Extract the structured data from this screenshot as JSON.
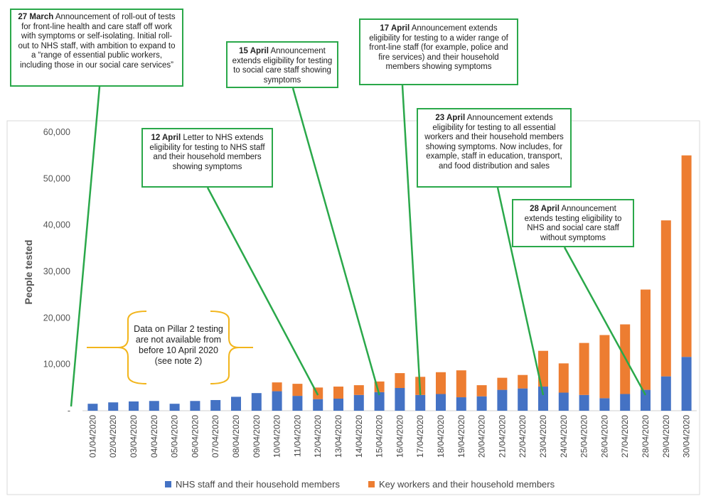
{
  "chart_data": {
    "type": "bar",
    "stacked": true,
    "ylabel": "People tested",
    "ylim": [
      0,
      60000
    ],
    "yticks": [
      0,
      10000,
      20000,
      30000,
      40000,
      50000,
      60000
    ],
    "ytick_labels": [
      "-",
      "10,000",
      "20,000",
      "30,000",
      "40,000",
      "50,000",
      "60,000"
    ],
    "categories": [
      "01/04/2020",
      "02/04/2020",
      "03/04/2020",
      "04/04/2020",
      "05/04/2020",
      "06/04/2020",
      "07/04/2020",
      "08/04/2020",
      "09/04/2020",
      "10/04/2020",
      "11/04/2020",
      "12/04/2020",
      "13/04/2020",
      "14/04/2020",
      "15/04/2020",
      "16/04/2020",
      "17/04/2020",
      "18/04/2020",
      "19/04/2020",
      "20/04/2020",
      "21/04/2020",
      "22/04/2020",
      "23/04/2020",
      "24/04/2020",
      "25/04/2020",
      "26/04/2020",
      "27/04/2020",
      "28/04/2020",
      "29/04/2020",
      "30/04/2020"
    ],
    "series": [
      {
        "name": "NHS staff and their household members",
        "color": "#4472c4",
        "values": [
          1500,
          1800,
          2000,
          2100,
          1500,
          2100,
          2300,
          3000,
          3800,
          4200,
          3200,
          2500,
          2600,
          3400,
          4000,
          4900,
          3400,
          3600,
          2900,
          3100,
          4500,
          4800,
          5200,
          3900,
          3400,
          2700,
          3600,
          4500,
          7400,
          11600
        ]
      },
      {
        "name": "Key workers and their household members",
        "color": "#ed7d31",
        "values": [
          0,
          0,
          0,
          0,
          0,
          0,
          0,
          0,
          0,
          1900,
          2600,
          2500,
          2600,
          2100,
          2300,
          3200,
          3900,
          4700,
          5800,
          2400,
          2600,
          2900,
          7700,
          6300,
          11200,
          13600,
          15000,
          21600,
          33600,
          43400
        ]
      }
    ],
    "legend_position": "bottom",
    "grid": false
  },
  "annotations": [
    {
      "id": "mar27",
      "date": "27 March",
      "text": "Announcement of roll-out of tests for front-line health and care staff off work with symptoms or self-isolating. Initial roll-out to NHS staff, with ambition to expand to a “range of essential public workers, including those in our social care services”"
    },
    {
      "id": "apr12",
      "date": "12 April",
      "text": "Letter to NHS extends eligibility for testing to NHS staff and their household members showing symptoms"
    },
    {
      "id": "apr15",
      "date": "15 April",
      "text": "Announcement extends eligibility for testing to social care staff showing symptoms"
    },
    {
      "id": "apr17",
      "date": "17 April",
      "text": "Announcement extends eligibility for testing to a wider range of front-line staff (for example, police and fire services) and their household members showing symptoms"
    },
    {
      "id": "apr23",
      "date": "23 April",
      "text": "Announcement extends eligibility for testing to all essential workers and their household members showing symptoms. Now includes, for example, staff in education, transport, and food distribution and sales"
    },
    {
      "id": "apr28",
      "date": "28 April",
      "text": "Announcement extends testing eligibility to NHS and social care staff without symptoms"
    }
  ],
  "pillar_note": {
    "line1": "Data on Pillar 2 testing",
    "line2": "are not available from",
    "line3": "before 10 April 2020",
    "line4": "(see note 2)"
  },
  "colors": {
    "annotation_border": "#2aa84a",
    "brace": "#f2b51c",
    "nhs": "#4472c4",
    "key": "#ed7d31"
  }
}
